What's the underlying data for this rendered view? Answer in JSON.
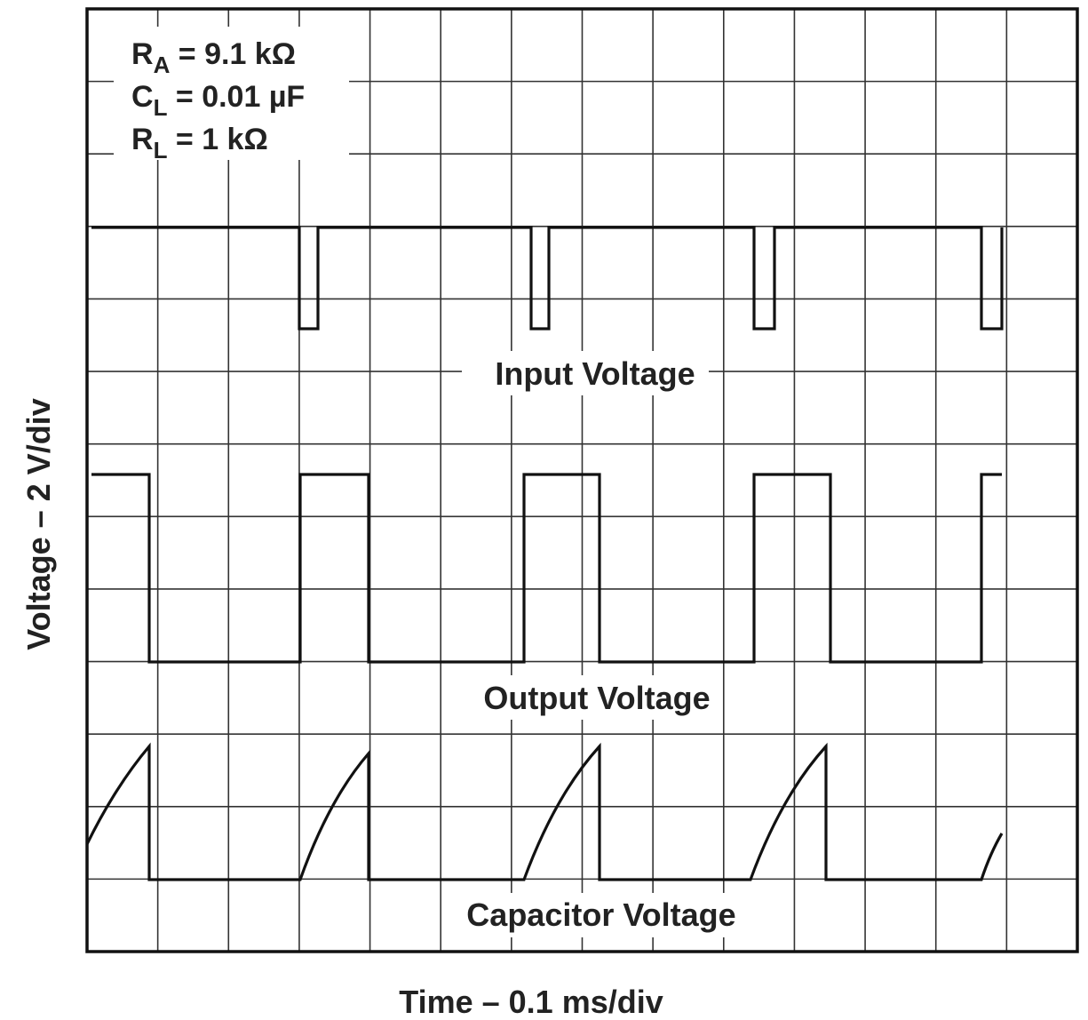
{
  "parameters": [
    {
      "symbol": "R",
      "subscript": "A",
      "value": " = 9.1 kΩ"
    },
    {
      "symbol": "C",
      "subscript": "L",
      "value": " = 0.01 µF"
    },
    {
      "symbol": "R",
      "subscript": "L",
      "value": " = 1 kΩ"
    }
  ],
  "traces": [
    "Input Voltage",
    "Output Voltage",
    "Capacitor Voltage"
  ],
  "y_axis_label": "Voltage – 2 V/div",
  "x_axis_label": "Time – 0.1 ms/div"
}
